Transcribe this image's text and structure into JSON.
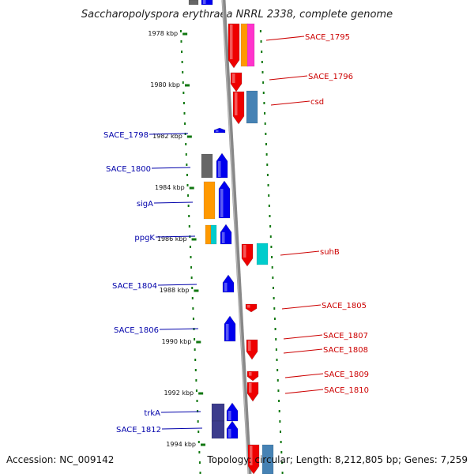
{
  "title": "Saccharopolyspora erythraea NRRL 2338, complete genome",
  "footer": {
    "accession": "Accession: NC_009142",
    "topology": "Topology: circular; Length: 8,212,805 bp; Genes: 7,259"
  },
  "colors": {
    "forward_gene": "#0000ee",
    "reverse_gene": "#ee0000",
    "forward_label": "#0000aa",
    "reverse_label": "#cc0000",
    "backbone": "#888888",
    "dotted_ring": "#117711",
    "cog_orange": "#ff9900",
    "cog_magenta": "#ff33cc",
    "cog_steelblue": "#4682b4",
    "cog_cyan": "#00cccc",
    "cog_grey": "#666666",
    "cog_darkslate": "#3c3c8c"
  },
  "ticks": [
    "1978 kbp",
    "1980 kbp",
    "1982 kbp",
    "1984 kbp",
    "1986 kbp",
    "1988 kbp",
    "1990 kbp",
    "1992 kbp",
    "1994 kbp"
  ],
  "forward_genes": [
    "SACE_1798",
    "SACE_1800",
    "sigA",
    "ppgK",
    "SACE_1804",
    "SACE_1806",
    "trkA",
    "SACE_1812"
  ],
  "reverse_genes": [
    "SACE_1795",
    "SACE_1796",
    "csd",
    "suhB",
    "SACE_1805",
    "SACE_1807",
    "SACE_1808",
    "SACE_1809",
    "SACE_1810"
  ]
}
